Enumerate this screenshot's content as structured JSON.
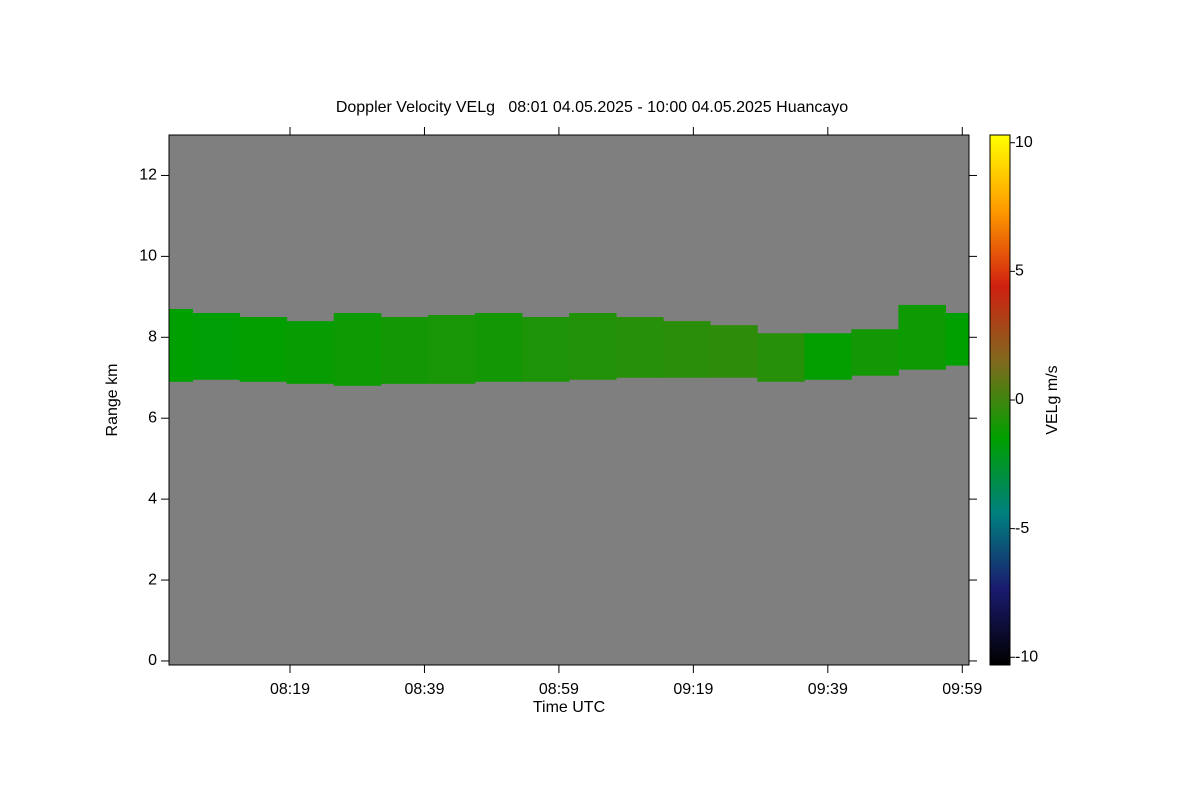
{
  "chart_data": {
    "type": "heatmap",
    "title": "Doppler Velocity VELg   08:01 04.05.2025 - 10:00 04.05.2025 Huancayo",
    "xlabel": "Time UTC",
    "ylabel": "Range km",
    "colorbar_label": "VELg m/s",
    "background": "#7f7f7f",
    "xlim": [
      481,
      600
    ],
    "xticks": [
      {
        "value": 499,
        "label": "08:19"
      },
      {
        "value": 519,
        "label": "08:39"
      },
      {
        "value": 539,
        "label": "08:59"
      },
      {
        "value": 559,
        "label": "09:19"
      },
      {
        "value": 579,
        "label": "09:39"
      },
      {
        "value": 599,
        "label": "09:59"
      }
    ],
    "ylim": [
      -0.1,
      13
    ],
    "yticks": [
      0,
      2,
      4,
      6,
      8,
      10,
      12
    ],
    "zlim": [
      -10.3,
      10.3
    ],
    "zticks": [
      -10,
      -5,
      0,
      5,
      10
    ],
    "colormap": [
      "#000000",
      "#1a1a6e",
      "#007f7f",
      "#00a000",
      "#7f6a1e",
      "#d02010",
      "#ff9a00",
      "#ffff00"
    ],
    "layer": {
      "x": [
        481,
        488,
        495,
        502,
        509,
        516,
        523,
        530,
        537,
        544,
        551,
        558,
        565,
        572,
        579,
        586,
        593,
        600
      ],
      "base": [
        6.9,
        6.95,
        6.9,
        6.85,
        6.8,
        6.85,
        6.85,
        6.9,
        6.9,
        6.95,
        7.0,
        7.0,
        7.0,
        6.9,
        6.95,
        7.05,
        7.2,
        7.3
      ],
      "top": [
        8.7,
        8.6,
        8.5,
        8.4,
        8.6,
        8.5,
        8.55,
        8.6,
        8.5,
        8.6,
        8.5,
        8.4,
        8.3,
        8.1,
        8.1,
        8.2,
        8.8,
        8.6
      ],
      "velocity": [
        -1.5,
        -1.6,
        -1.4,
        -1.3,
        -1.2,
        -1.0,
        -0.9,
        -1.0,
        -0.8,
        -0.7,
        -0.6,
        -0.5,
        -0.4,
        -0.6,
        -1.4,
        -1.0,
        -1.2,
        -1.5
      ]
    }
  }
}
